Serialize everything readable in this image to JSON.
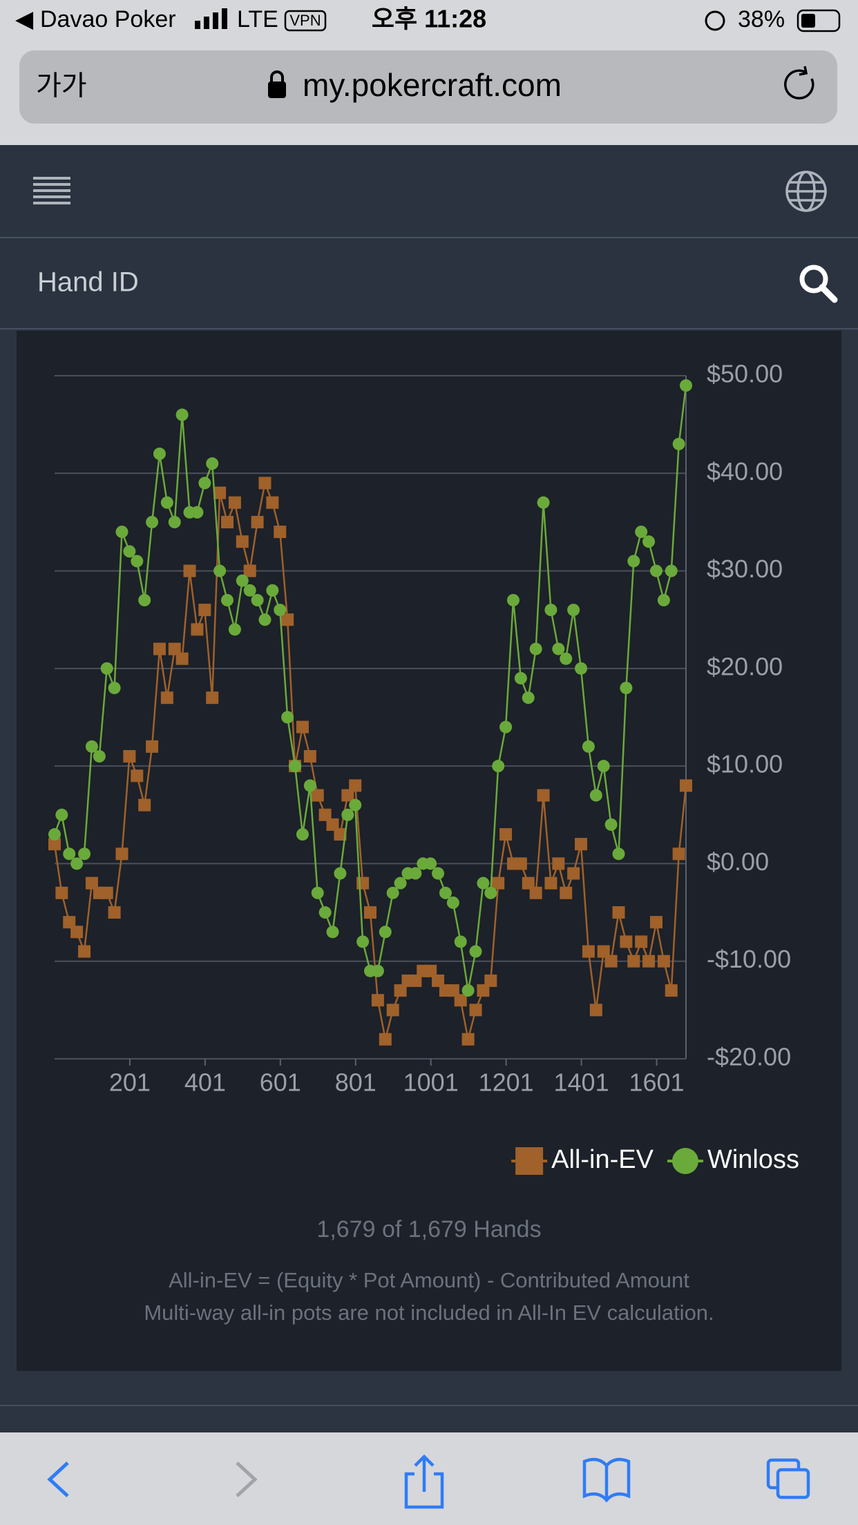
{
  "status_bar": {
    "carrier": "Davao Poker",
    "network": "LTE",
    "vpn": "VPN",
    "time": "오후 11:28",
    "battery": "38%"
  },
  "address_bar": {
    "text_size": "가가",
    "url": "my.pokercraft.com"
  },
  "search": {
    "label": "Hand ID"
  },
  "chart_data": {
    "type": "line",
    "x": [
      1,
      20,
      40,
      60,
      80,
      100,
      120,
      140,
      160,
      180,
      200,
      220,
      240,
      260,
      280,
      300,
      320,
      340,
      360,
      380,
      400,
      420,
      440,
      460,
      480,
      500,
      520,
      540,
      560,
      580,
      600,
      620,
      640,
      660,
      680,
      700,
      720,
      740,
      760,
      780,
      800,
      820,
      840,
      860,
      880,
      900,
      920,
      940,
      960,
      980,
      1000,
      1020,
      1040,
      1060,
      1080,
      1100,
      1120,
      1140,
      1160,
      1180,
      1200,
      1220,
      1240,
      1260,
      1280,
      1300,
      1320,
      1340,
      1360,
      1380,
      1400,
      1420,
      1440,
      1460,
      1480,
      1500,
      1520,
      1540,
      1560,
      1580,
      1600,
      1620,
      1640,
      1660,
      1679
    ],
    "series": [
      {
        "name": "All-in-EV",
        "color": "#a0612a",
        "marker": "square",
        "values": [
          2,
          -3,
          -6,
          -7,
          -9,
          -2,
          -3,
          -3,
          -5,
          1,
          11,
          9,
          6,
          12,
          22,
          17,
          22,
          21,
          30,
          24,
          26,
          17,
          38,
          35,
          37,
          33,
          30,
          35,
          39,
          37,
          34,
          25,
          10,
          14,
          11,
          7,
          5,
          4,
          3,
          7,
          8,
          -2,
          -5,
          -14,
          -18,
          -15,
          -13,
          -12,
          -12,
          -11,
          -11,
          -12,
          -13,
          -13,
          -14,
          -18,
          -15,
          -13,
          -12,
          -2,
          3,
          0,
          0,
          -2,
          -3,
          7,
          -2,
          0,
          -3,
          -1,
          2,
          -9,
          -15,
          -9,
          -10,
          -5,
          -8,
          -10,
          -8,
          -10,
          -6,
          -10,
          -13,
          1,
          8
        ]
      },
      {
        "name": "Winloss",
        "color": "#6aaa3a",
        "marker": "circle",
        "values": [
          3,
          5,
          1,
          0,
          1,
          12,
          11,
          20,
          18,
          34,
          32,
          31,
          27,
          35,
          42,
          37,
          35,
          46,
          36,
          36,
          39,
          41,
          30,
          27,
          24,
          29,
          28,
          27,
          25,
          28,
          26,
          15,
          10,
          3,
          8,
          -3,
          -5,
          -7,
          -1,
          5,
          6,
          -8,
          -11,
          -11,
          -7,
          -3,
          -2,
          -1,
          -1,
          0,
          0,
          -1,
          -3,
          -4,
          -8,
          -13,
          -9,
          -2,
          -3,
          10,
          14,
          27,
          19,
          17,
          22,
          37,
          26,
          22,
          21,
          26,
          20,
          12,
          7,
          10,
          4,
          1,
          18,
          31,
          34,
          33,
          30,
          27,
          30,
          43,
          49
        ]
      }
    ],
    "xlim": [
      1,
      1679
    ],
    "xticks": [
      201,
      401,
      601,
      801,
      1001,
      1201,
      1401,
      1601
    ],
    "ylim": [
      -20,
      50
    ],
    "yticks": [
      {
        "value": -20,
        "label": "-$20.00"
      },
      {
        "value": -10,
        "label": "-$10.00"
      },
      {
        "value": 0,
        "label": "$0.00"
      },
      {
        "value": 10,
        "label": "$10.00"
      },
      {
        "value": 20,
        "label": "$20.00"
      },
      {
        "value": 30,
        "label": "$30.00"
      },
      {
        "value": 40,
        "label": "$40.00"
      },
      {
        "value": 50,
        "label": "$50.00"
      }
    ],
    "grid": true,
    "legend": "bottom-right",
    "hands_count": "1,679 of 1,679 Hands",
    "notes": [
      "All-in-EV = (Equity * Pot Amount) - Contributed Amount",
      "Multi-way all-in pots are not included in All-In EV calculation."
    ]
  }
}
